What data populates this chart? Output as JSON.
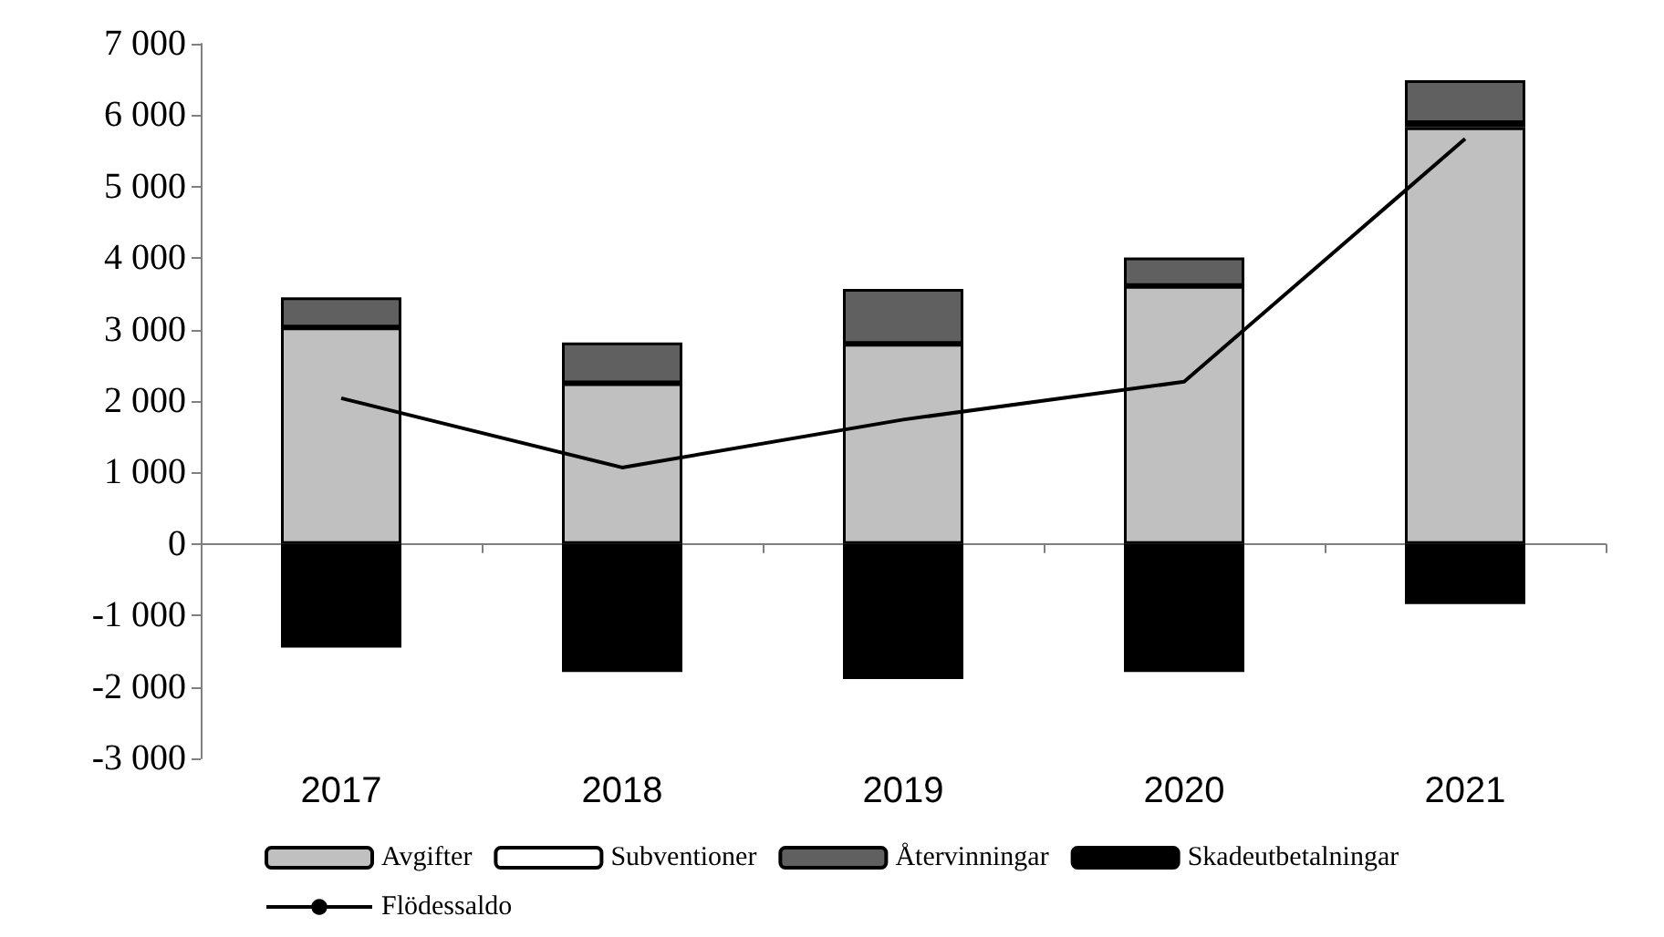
{
  "chart_data": {
    "type": "bar",
    "stacked": true,
    "categories": [
      "2017",
      "2018",
      "2019",
      "2020",
      "2021"
    ],
    "series": [
      {
        "name": "Avgifter",
        "color": "#c0c0c0",
        "values": [
          3030,
          2250,
          2800,
          3610,
          5830
        ]
      },
      {
        "name": "Subventioner",
        "color": "#ffffff",
        "values": [
          0,
          0,
          0,
          0,
          60
        ]
      },
      {
        "name": "Återvinningar",
        "color": "#606060",
        "values": [
          420,
          570,
          770,
          400,
          600
        ]
      },
      {
        "name": "Skadeutbetalningar",
        "color": "#000000",
        "values": [
          -1450,
          -1790,
          -1890,
          -1790,
          -840
        ]
      },
      {
        "name": "Flödessaldo",
        "type": "line",
        "color": "#000000",
        "marker": "none",
        "values": [
          2040,
          1070,
          1740,
          2270,
          5670
        ]
      }
    ],
    "ylim": [
      -3000,
      7000
    ],
    "yticks": [
      {
        "value": -3000,
        "label": "-3 000"
      },
      {
        "value": -2000,
        "label": "-2 000"
      },
      {
        "value": -1000,
        "label": "-1 000"
      },
      0,
      {
        "value": 1000,
        "label": "1 000"
      },
      {
        "value": 2000,
        "label": "2 000"
      },
      {
        "value": 3000,
        "label": "3 000"
      },
      {
        "value": 4000,
        "label": "4 000"
      },
      {
        "value": 5000,
        "label": "5 000"
      },
      {
        "value": 6000,
        "label": "6 000"
      },
      {
        "value": 7000,
        "label": "7 000"
      }
    ],
    "legend": "bottom"
  }
}
